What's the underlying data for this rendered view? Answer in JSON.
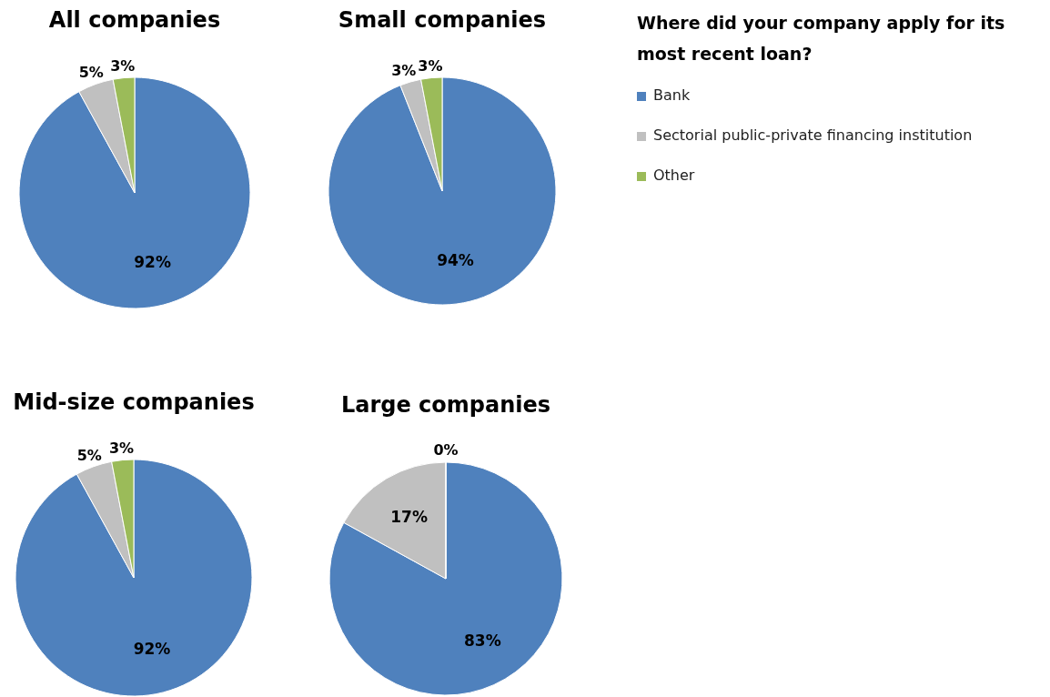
{
  "chart_data": [
    {
      "type": "pie",
      "title": "All companies",
      "categories": [
        "Bank",
        "Sectorial public-private financing institution",
        "Other"
      ],
      "values": [
        92,
        5,
        3
      ],
      "value_labels": [
        "92%",
        "5%",
        "3%"
      ],
      "colors": [
        "#4f81bd",
        "#c0c0c0",
        "#9bbb59"
      ],
      "legend": "right",
      "legend_title": "Where did your company apply for its most recent loan?"
    },
    {
      "type": "pie",
      "title": "Small companies",
      "categories": [
        null,
        null,
        null
      ],
      "values": [
        94,
        3,
        3
      ],
      "value_labels": [
        "94%",
        "3%",
        "3%"
      ],
      "colors": [
        "#4f81bd",
        "#c0c0c0",
        "#9bbb59"
      ]
    },
    {
      "type": "pie",
      "title": "Mid-size companies",
      "categories": [
        null,
        null,
        null
      ],
      "values": [
        92,
        5,
        3
      ],
      "value_labels": [
        "92%",
        "5%",
        "3%"
      ],
      "colors": [
        "#4f81bd",
        "#c0c0c0",
        "#9bbb59"
      ]
    },
    {
      "type": "pie",
      "title": "Large companies",
      "categories": [
        null,
        null,
        null
      ],
      "values": [
        83,
        17,
        0
      ],
      "value_labels": [
        "83%",
        "17%",
        "0%"
      ],
      "colors": [
        "#4f81bd",
        "#c0c0c0",
        "#9bbb59"
      ]
    }
  ]
}
